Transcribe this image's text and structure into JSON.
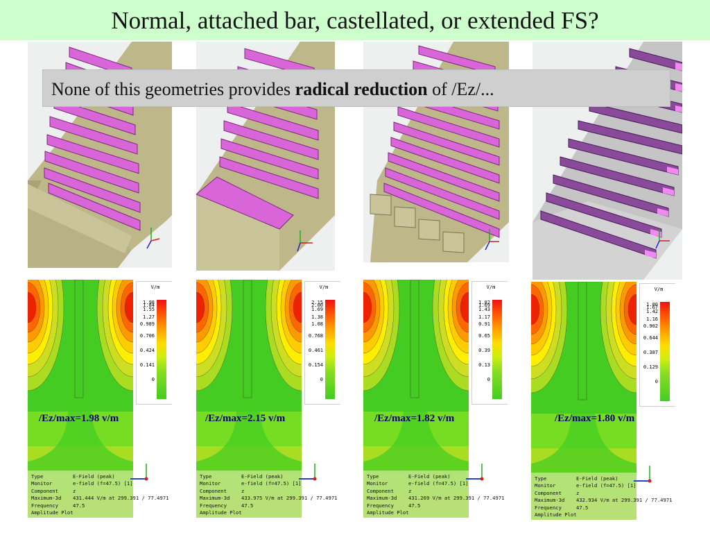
{
  "slide": {
    "title": "Normal, attached bar, castellated, or extended FS?",
    "note_prefix": "None of this geometries provides",
    "note_bold": "radical reduction",
    "note_suffix": "of /Ez/..."
  },
  "panels": [
    {
      "variant": "Normal",
      "legend_unit": "V/m",
      "legend_labels": [
        "1.98",
        "1.84",
        "1.55",
        "1.27",
        "0.989",
        "0.706",
        "0.424",
        "0.141",
        "0"
      ],
      "max_label": "/Ez/max=1.98 v/m",
      "info": {
        "type": "E-Field (peak)",
        "monitor": "e-field (f=47.5) [1]",
        "component": "z",
        "maximum": "431.444 V/m at 299.391 / 77.4971 /",
        "frequency": "47.5",
        "footer": "Amplitude Plot"
      }
    },
    {
      "variant": "Attached bar",
      "legend_unit": "V/m",
      "legend_labels": [
        "2.15",
        "2.00",
        "1.69",
        "1.38",
        "1.08",
        "0.768",
        "0.461",
        "0.154",
        "0"
      ],
      "max_label": "/Ez/max=2.15 v/m",
      "info": {
        "type": "E-Field (peak)",
        "monitor": "e-field (f=47.5) [1]",
        "component": "z",
        "maximum": "433.975 V/m at 299.391 / 77.4971 /",
        "frequency": "47.5",
        "footer": "Amplitude Plot"
      }
    },
    {
      "variant": "Castellated",
      "legend_unit": "V/m",
      "legend_labels": [
        "1.82",
        "1.69",
        "1.43",
        "1.17",
        "0.91",
        "0.65",
        "0.39",
        "0.13",
        "0"
      ],
      "max_label": "/Ez/max=1.82 v/m",
      "info": {
        "type": "E-Field (peak)",
        "monitor": "e-field (f=47.5) [1]",
        "component": "z",
        "maximum": "431.269 V/m at 299.391 / 77.4971",
        "frequency": "47.5",
        "footer": "Amplitude Plot"
      }
    },
    {
      "variant": "Extended FS",
      "legend_unit": "V/m",
      "legend_labels": [
        "1.80",
        "1.67",
        "1.42",
        "1.16",
        "0.902",
        "0.644",
        "0.387",
        "0.129",
        "0"
      ],
      "max_label": "/Ez/max=1.80 v/m",
      "info": {
        "type": "E-Field (peak)",
        "monitor": "e-field (f=47.5) [1]",
        "component": "z",
        "maximum": "432.934 V/m at 299.391 / 77.4971 /",
        "frequency": "47.5",
        "footer": "Amplitude Plot"
      }
    }
  ],
  "info_keys": [
    "Type",
    "Monitor",
    "Component",
    "Maximum-3d",
    "Frequency"
  ],
  "colors": {
    "title_bg": "#ccffcc",
    "overlay_bg": "#cfcfcf",
    "bar_magenta": "#d966d9",
    "bar_purple": "#8a4a9a",
    "body_olive": "#c9c49a",
    "field_green": "#44cc22",
    "field_red": "#ee2200",
    "max_label": "#000066"
  }
}
